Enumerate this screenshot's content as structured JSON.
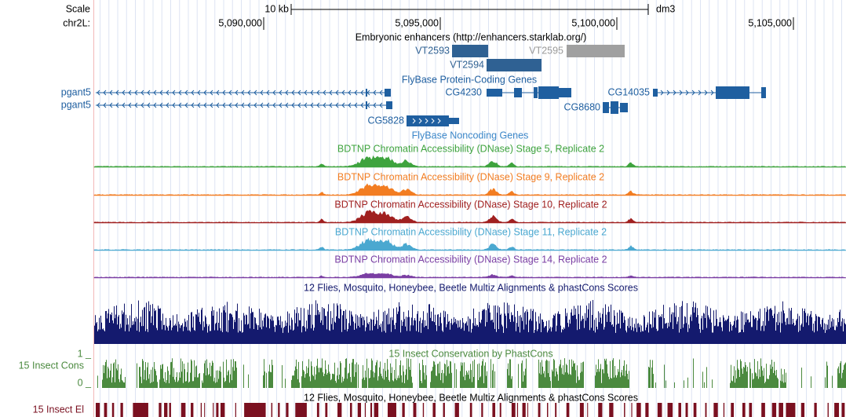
{
  "ruler": {
    "scale_label": "Scale",
    "scale_size": "10 kb",
    "assembly": "dm3",
    "chrom": "chr2L:",
    "ticks": [
      "5,090,000",
      "5,095,000",
      "5,100,000",
      "5,105,000"
    ]
  },
  "tracks": {
    "enhancers": {
      "title": "Embryonic enhancers (http://enhancers.starklab.org/)",
      "items": [
        "VT2593",
        "VT2594",
        "VT2595"
      ]
    },
    "genes": {
      "title": "FlyBase Protein-Coding Genes",
      "items": [
        "pgant5",
        "pgant5",
        "CG4230",
        "CG14035",
        "CG8680",
        "CG5828"
      ]
    },
    "noncoding": {
      "title": "FlyBase Noncoding Genes"
    },
    "dnase": [
      "BDTNP Chromatin Accessibility (DNase) Stage 5, Replicate 2",
      "BDTNP Chromatin Accessibility (DNase) Stage 9, Replicate 2",
      "BDTNP Chromatin Accessibility (DNase) Stage 10, Replicate 2",
      "BDTNP Chromatin Accessibility (DNase) Stage 11, Replicate 2",
      "BDTNP Chromatin Accessibility (DNase) Stage 14, Replicate 2"
    ],
    "multiz": {
      "title": "12 Flies, Mosquito, Honeybee, Beetle Multiz Alignments & phastCons Scores"
    },
    "phastcons": {
      "title": "15 Insect Conservation by PhastCons",
      "side_label": "15 Insect Cons",
      "max": "1 _",
      "min": "0 _"
    },
    "elements": {
      "title": "12 Flies, Mosquito, Honeybee, Beetle Multiz Alignments & phastCons Scores",
      "side_label": "15 Insect El"
    }
  }
}
